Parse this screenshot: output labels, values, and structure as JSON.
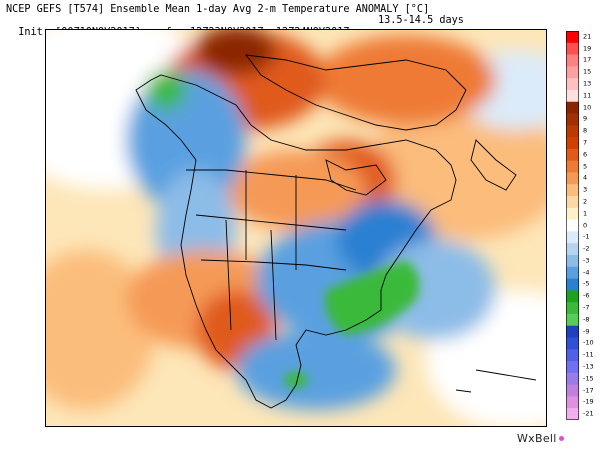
{
  "header": {
    "line1": "NCEP GEFS [T574] Ensemble Mean 1-day Avg 2-m Temperature ANOMALY [°C]",
    "line2": "Init: [00Z10NOV2017] -- fx: 12Z23NOV2017--12Z24NOV2017",
    "range": "13.5-14.5 days"
  },
  "colorbar": {
    "labels": [
      "21",
      "19",
      "17",
      "15",
      "13",
      "11",
      "10",
      "9",
      "8",
      "7",
      "6",
      "5",
      "4",
      "3",
      "2",
      "1",
      "0",
      "-1",
      "-2",
      "-3",
      "-4",
      "-5",
      "-6",
      "-7",
      "-8",
      "-9",
      "-10",
      "-11",
      "-13",
      "-15",
      "-17",
      "-19",
      "-21"
    ],
    "colors": [
      "#ff0000",
      "#ff5050",
      "#ff8080",
      "#ffa0a0",
      "#ffc0c0",
      "#ffe0e0",
      "#8b2500",
      "#a33000",
      "#bb3a00",
      "#d04000",
      "#e05a1a",
      "#ee7a36",
      "#f59a56",
      "#fbbc7c",
      "#fdd8a4",
      "#fef0c8",
      "#ffffff",
      "#dcebf9",
      "#b4d4f0",
      "#8cbce8",
      "#5aa0e0",
      "#2a80d2",
      "#1fa31f",
      "#3ab93a",
      "#58cc58",
      "#2040c0",
      "#3050d8",
      "#5060e8",
      "#7070f0",
      "#9a7ce8",
      "#c080e0",
      "#e090e0",
      "#f0b0f0"
    ]
  },
  "brand": {
    "text": "WxBell"
  }
}
